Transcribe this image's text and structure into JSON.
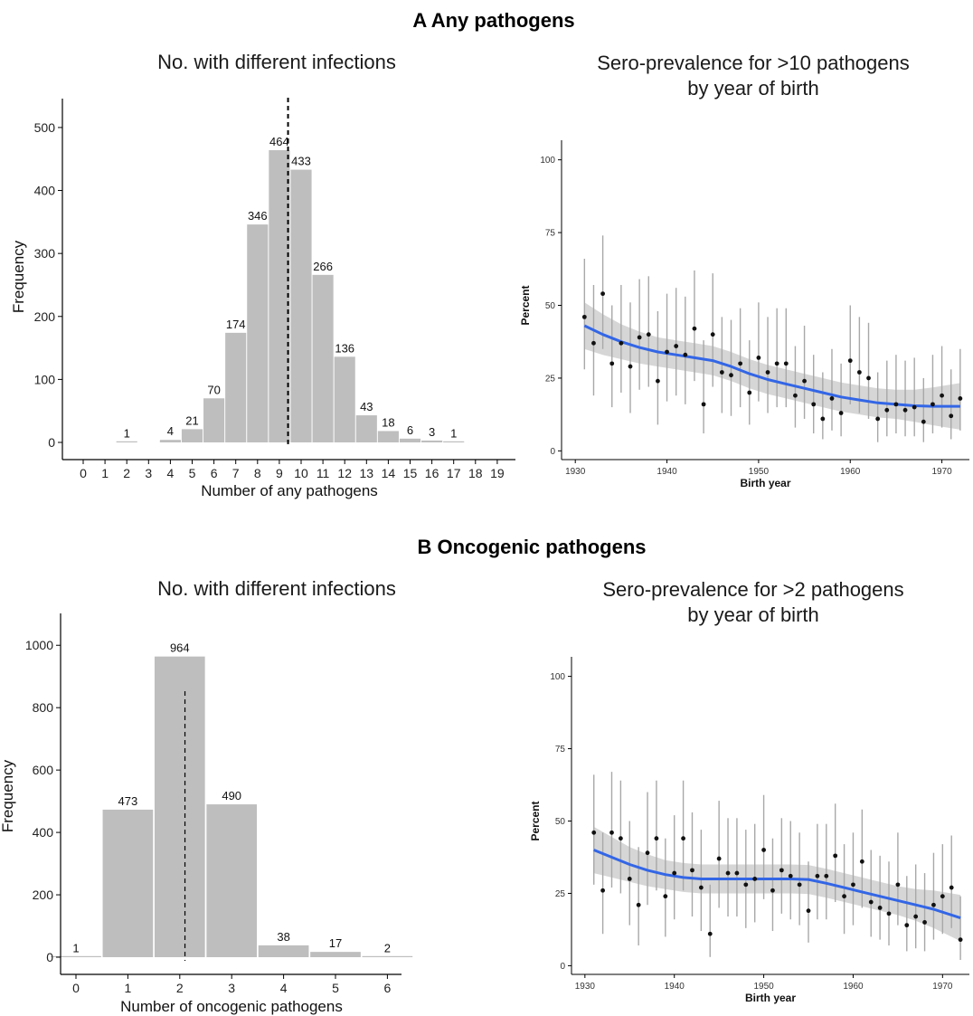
{
  "sections": {
    "a_title": "A  Any pathogens",
    "b_title": "B  Oncogenic pathogens"
  },
  "chart_data": [
    {
      "type": "bar",
      "title": "No. with different infections",
      "xlabel": "Number of any pathogens",
      "ylabel": "Frequency",
      "categories": [
        0,
        1,
        2,
        3,
        4,
        5,
        6,
        7,
        8,
        9,
        10,
        11,
        12,
        13,
        14,
        15,
        16,
        17,
        18,
        19
      ],
      "values": [
        0,
        0,
        1,
        0,
        4,
        21,
        70,
        174,
        346,
        464,
        433,
        266,
        136,
        43,
        18,
        6,
        3,
        1,
        0,
        0
      ],
      "bar_labels": [
        "",
        "",
        "1",
        "",
        "4",
        "21",
        "70",
        "174",
        "346",
        "464",
        "433",
        "266",
        "136",
        "43",
        "18",
        "6",
        "3",
        "1",
        "",
        ""
      ],
      "yticks": [
        0,
        100,
        200,
        300,
        400,
        500
      ],
      "ylim": [
        0,
        520
      ],
      "reference_line": 9.4,
      "reference_line_style": "dashed",
      "bar_color": "#bebebe"
    },
    {
      "type": "scatter",
      "title_lines": [
        "Sero-prevalence for >10 pathogens",
        "by year of birth"
      ],
      "xlabel": "Birth year",
      "ylabel": "Percent",
      "xlim": [
        1928.5,
        1973
      ],
      "ylim": [
        -3,
        103
      ],
      "xticks": [
        1930,
        1940,
        1950,
        1960,
        1970
      ],
      "yticks": [
        0,
        25,
        50,
        75,
        100
      ],
      "points": [
        {
          "x": 1931,
          "y": 46,
          "lo": 28,
          "hi": 66
        },
        {
          "x": 1932,
          "y": 37,
          "lo": 19,
          "hi": 57
        },
        {
          "x": 1933,
          "y": 54,
          "lo": 35,
          "hi": 74
        },
        {
          "x": 1934,
          "y": 30,
          "lo": 15,
          "hi": 50
        },
        {
          "x": 1935,
          "y": 37,
          "lo": 20,
          "hi": 57
        },
        {
          "x": 1936,
          "y": 29,
          "lo": 13,
          "hi": 51
        },
        {
          "x": 1937,
          "y": 39,
          "lo": 21,
          "hi": 59
        },
        {
          "x": 1938,
          "y": 40,
          "lo": 22,
          "hi": 60
        },
        {
          "x": 1939,
          "y": 24,
          "lo": 9,
          "hi": 48
        },
        {
          "x": 1940,
          "y": 34,
          "lo": 17,
          "hi": 54
        },
        {
          "x": 1941,
          "y": 36,
          "lo": 19,
          "hi": 56
        },
        {
          "x": 1942,
          "y": 33,
          "lo": 16,
          "hi": 53
        },
        {
          "x": 1943,
          "y": 42,
          "lo": 24,
          "hi": 62
        },
        {
          "x": 1944,
          "y": 16,
          "lo": 6,
          "hi": 38
        },
        {
          "x": 1945,
          "y": 40,
          "lo": 22,
          "hi": 61
        },
        {
          "x": 1946,
          "y": 27,
          "lo": 13,
          "hi": 46
        },
        {
          "x": 1947,
          "y": 26,
          "lo": 12,
          "hi": 45
        },
        {
          "x": 1948,
          "y": 30,
          "lo": 15,
          "hi": 49
        },
        {
          "x": 1949,
          "y": 20,
          "lo": 9,
          "hi": 38
        },
        {
          "x": 1950,
          "y": 32,
          "lo": 17,
          "hi": 51
        },
        {
          "x": 1951,
          "y": 27,
          "lo": 13,
          "hi": 46
        },
        {
          "x": 1952,
          "y": 30,
          "lo": 15,
          "hi": 49
        },
        {
          "x": 1953,
          "y": 30,
          "lo": 15,
          "hi": 49
        },
        {
          "x": 1954,
          "y": 19,
          "lo": 8,
          "hi": 36
        },
        {
          "x": 1955,
          "y": 24,
          "lo": 11,
          "hi": 43
        },
        {
          "x": 1956,
          "y": 16,
          "lo": 6,
          "hi": 33
        },
        {
          "x": 1957,
          "y": 11,
          "lo": 4,
          "hi": 27
        },
        {
          "x": 1958,
          "y": 18,
          "lo": 7,
          "hi": 35
        },
        {
          "x": 1959,
          "y": 13,
          "lo": 5,
          "hi": 30
        },
        {
          "x": 1960,
          "y": 31,
          "lo": 16,
          "hi": 50
        },
        {
          "x": 1961,
          "y": 27,
          "lo": 13,
          "hi": 46
        },
        {
          "x": 1962,
          "y": 25,
          "lo": 11,
          "hi": 44
        },
        {
          "x": 1963,
          "y": 11,
          "lo": 3,
          "hi": 27
        },
        {
          "x": 1964,
          "y": 14,
          "lo": 5,
          "hi": 31
        },
        {
          "x": 1965,
          "y": 16,
          "lo": 6,
          "hi": 33
        },
        {
          "x": 1966,
          "y": 14,
          "lo": 5,
          "hi": 31
        },
        {
          "x": 1967,
          "y": 15,
          "lo": 5,
          "hi": 32
        },
        {
          "x": 1968,
          "y": 10,
          "lo": 3,
          "hi": 25
        },
        {
          "x": 1969,
          "y": 16,
          "lo": 6,
          "hi": 33
        },
        {
          "x": 1970,
          "y": 19,
          "lo": 8,
          "hi": 36
        },
        {
          "x": 1971,
          "y": 12,
          "lo": 4,
          "hi": 28
        },
        {
          "x": 1972,
          "y": 18,
          "lo": 7,
          "hi": 35
        }
      ],
      "smooth": [
        {
          "x": 1931,
          "y": 43
        },
        {
          "x": 1933,
          "y": 40
        },
        {
          "x": 1935,
          "y": 37.5
        },
        {
          "x": 1937,
          "y": 35.5
        },
        {
          "x": 1939,
          "y": 34
        },
        {
          "x": 1941,
          "y": 33
        },
        {
          "x": 1943,
          "y": 32
        },
        {
          "x": 1945,
          "y": 31
        },
        {
          "x": 1947,
          "y": 29
        },
        {
          "x": 1949,
          "y": 26.5
        },
        {
          "x": 1951,
          "y": 24.5
        },
        {
          "x": 1953,
          "y": 23
        },
        {
          "x": 1955,
          "y": 21.5
        },
        {
          "x": 1957,
          "y": 20
        },
        {
          "x": 1959,
          "y": 18.5
        },
        {
          "x": 1961,
          "y": 17.5
        },
        {
          "x": 1963,
          "y": 16.5
        },
        {
          "x": 1965,
          "y": 16
        },
        {
          "x": 1967,
          "y": 15.5
        },
        {
          "x": 1969,
          "y": 15.3
        },
        {
          "x": 1972,
          "y": 15.3
        }
      ],
      "band_halfwidth": [
        8,
        7,
        6,
        5.5,
        5,
        5,
        5,
        5,
        5,
        5,
        5,
        5,
        5,
        5,
        5,
        5,
        5,
        5,
        5.5,
        6.5,
        8
      ],
      "smooth_color": "#3366e6",
      "band_color": "#cfcfcf"
    },
    {
      "type": "bar",
      "title": "No. with different infections",
      "xlabel": "Number of oncogenic pathogens",
      "ylabel": "Frequency",
      "categories": [
        0,
        1,
        2,
        3,
        4,
        5,
        6
      ],
      "values": [
        1,
        473,
        964,
        490,
        38,
        17,
        2
      ],
      "bar_labels": [
        "1",
        "473",
        "964",
        "490",
        "38",
        "17",
        "2"
      ],
      "yticks": [
        0,
        200,
        400,
        600,
        800,
        1000
      ],
      "ylim": [
        0,
        1050
      ],
      "reference_line": 2.1,
      "reference_line_style": "dashed",
      "bar_color": "#bebebe"
    },
    {
      "type": "scatter",
      "title_lines": [
        "Sero-prevalence for >2 pathogens",
        "by year of birth"
      ],
      "xlabel": "Birth year",
      "ylabel": "Percent",
      "xlim": [
        1928.5,
        1973
      ],
      "ylim": [
        -3,
        103
      ],
      "xticks": [
        1930,
        1940,
        1950,
        1960,
        1970
      ],
      "yticks": [
        0,
        25,
        50,
        75,
        100
      ],
      "points": [
        {
          "x": 1931,
          "y": 46,
          "lo": 28,
          "hi": 66
        },
        {
          "x": 1932,
          "y": 26,
          "lo": 11,
          "hi": 46
        },
        {
          "x": 1933,
          "y": 46,
          "lo": 27,
          "hi": 67
        },
        {
          "x": 1934,
          "y": 44,
          "lo": 25,
          "hi": 64
        },
        {
          "x": 1935,
          "y": 30,
          "lo": 14,
          "hi": 50
        },
        {
          "x": 1936,
          "y": 21,
          "lo": 7,
          "hi": 41
        },
        {
          "x": 1937,
          "y": 39,
          "lo": 21,
          "hi": 60
        },
        {
          "x": 1938,
          "y": 44,
          "lo": 26,
          "hi": 64
        },
        {
          "x": 1939,
          "y": 24,
          "lo": 10,
          "hi": 44
        },
        {
          "x": 1940,
          "y": 32,
          "lo": 16,
          "hi": 52
        },
        {
          "x": 1941,
          "y": 44,
          "lo": 26,
          "hi": 64
        },
        {
          "x": 1942,
          "y": 33,
          "lo": 17,
          "hi": 53
        },
        {
          "x": 1943,
          "y": 27,
          "lo": 12,
          "hi": 47
        },
        {
          "x": 1944,
          "y": 11,
          "lo": 3,
          "hi": 28
        },
        {
          "x": 1945,
          "y": 37,
          "lo": 20,
          "hi": 57
        },
        {
          "x": 1946,
          "y": 32,
          "lo": 17,
          "hi": 51
        },
        {
          "x": 1947,
          "y": 32,
          "lo": 17,
          "hi": 51
        },
        {
          "x": 1948,
          "y": 28,
          "lo": 13,
          "hi": 47
        },
        {
          "x": 1949,
          "y": 30,
          "lo": 15,
          "hi": 49
        },
        {
          "x": 1950,
          "y": 40,
          "lo": 23,
          "hi": 59
        },
        {
          "x": 1951,
          "y": 26,
          "lo": 12,
          "hi": 44
        },
        {
          "x": 1952,
          "y": 33,
          "lo": 18,
          "hi": 51
        },
        {
          "x": 1953,
          "y": 31,
          "lo": 16,
          "hi": 50
        },
        {
          "x": 1954,
          "y": 28,
          "lo": 14,
          "hi": 46
        },
        {
          "x": 1955,
          "y": 19,
          "lo": 8,
          "hi": 36
        },
        {
          "x": 1956,
          "y": 31,
          "lo": 16,
          "hi": 49
        },
        {
          "x": 1957,
          "y": 31,
          "lo": 16,
          "hi": 49
        },
        {
          "x": 1958,
          "y": 38,
          "lo": 22,
          "hi": 56
        },
        {
          "x": 1959,
          "y": 24,
          "lo": 11,
          "hi": 42
        },
        {
          "x": 1960,
          "y": 28,
          "lo": 14,
          "hi": 46
        },
        {
          "x": 1961,
          "y": 36,
          "lo": 20,
          "hi": 54
        },
        {
          "x": 1962,
          "y": 22,
          "lo": 10,
          "hi": 40
        },
        {
          "x": 1963,
          "y": 20,
          "lo": 9,
          "hi": 38
        },
        {
          "x": 1964,
          "y": 18,
          "lo": 7,
          "hi": 36
        },
        {
          "x": 1965,
          "y": 28,
          "lo": 14,
          "hi": 46
        },
        {
          "x": 1966,
          "y": 14,
          "lo": 5,
          "hi": 31
        },
        {
          "x": 1967,
          "y": 17,
          "lo": 6,
          "hi": 35
        },
        {
          "x": 1968,
          "y": 15,
          "lo": 5,
          "hi": 32
        },
        {
          "x": 1969,
          "y": 21,
          "lo": 9,
          "hi": 39
        },
        {
          "x": 1970,
          "y": 24,
          "lo": 11,
          "hi": 42
        },
        {
          "x": 1971,
          "y": 27,
          "lo": 13,
          "hi": 45
        },
        {
          "x": 1972,
          "y": 9,
          "lo": 2,
          "hi": 24
        }
      ],
      "smooth": [
        {
          "x": 1931,
          "y": 40
        },
        {
          "x": 1933,
          "y": 37.5
        },
        {
          "x": 1935,
          "y": 35
        },
        {
          "x": 1937,
          "y": 33
        },
        {
          "x": 1939,
          "y": 31.5
        },
        {
          "x": 1941,
          "y": 30.5
        },
        {
          "x": 1943,
          "y": 30
        },
        {
          "x": 1945,
          "y": 30
        },
        {
          "x": 1947,
          "y": 30
        },
        {
          "x": 1949,
          "y": 30
        },
        {
          "x": 1951,
          "y": 30
        },
        {
          "x": 1953,
          "y": 30
        },
        {
          "x": 1955,
          "y": 29.8
        },
        {
          "x": 1957,
          "y": 28.5
        },
        {
          "x": 1959,
          "y": 27
        },
        {
          "x": 1961,
          "y": 25.5
        },
        {
          "x": 1963,
          "y": 24
        },
        {
          "x": 1965,
          "y": 22.5
        },
        {
          "x": 1967,
          "y": 21
        },
        {
          "x": 1969,
          "y": 19.5
        },
        {
          "x": 1972,
          "y": 16.5
        }
      ],
      "band_halfwidth": [
        8,
        7,
        6,
        5.5,
        5,
        5,
        5,
        5,
        5,
        5,
        5,
        5,
        5,
        5,
        5,
        5,
        5,
        5,
        5.5,
        6.5,
        8
      ],
      "smooth_color": "#3366e6",
      "band_color": "#cfcfcf"
    }
  ]
}
